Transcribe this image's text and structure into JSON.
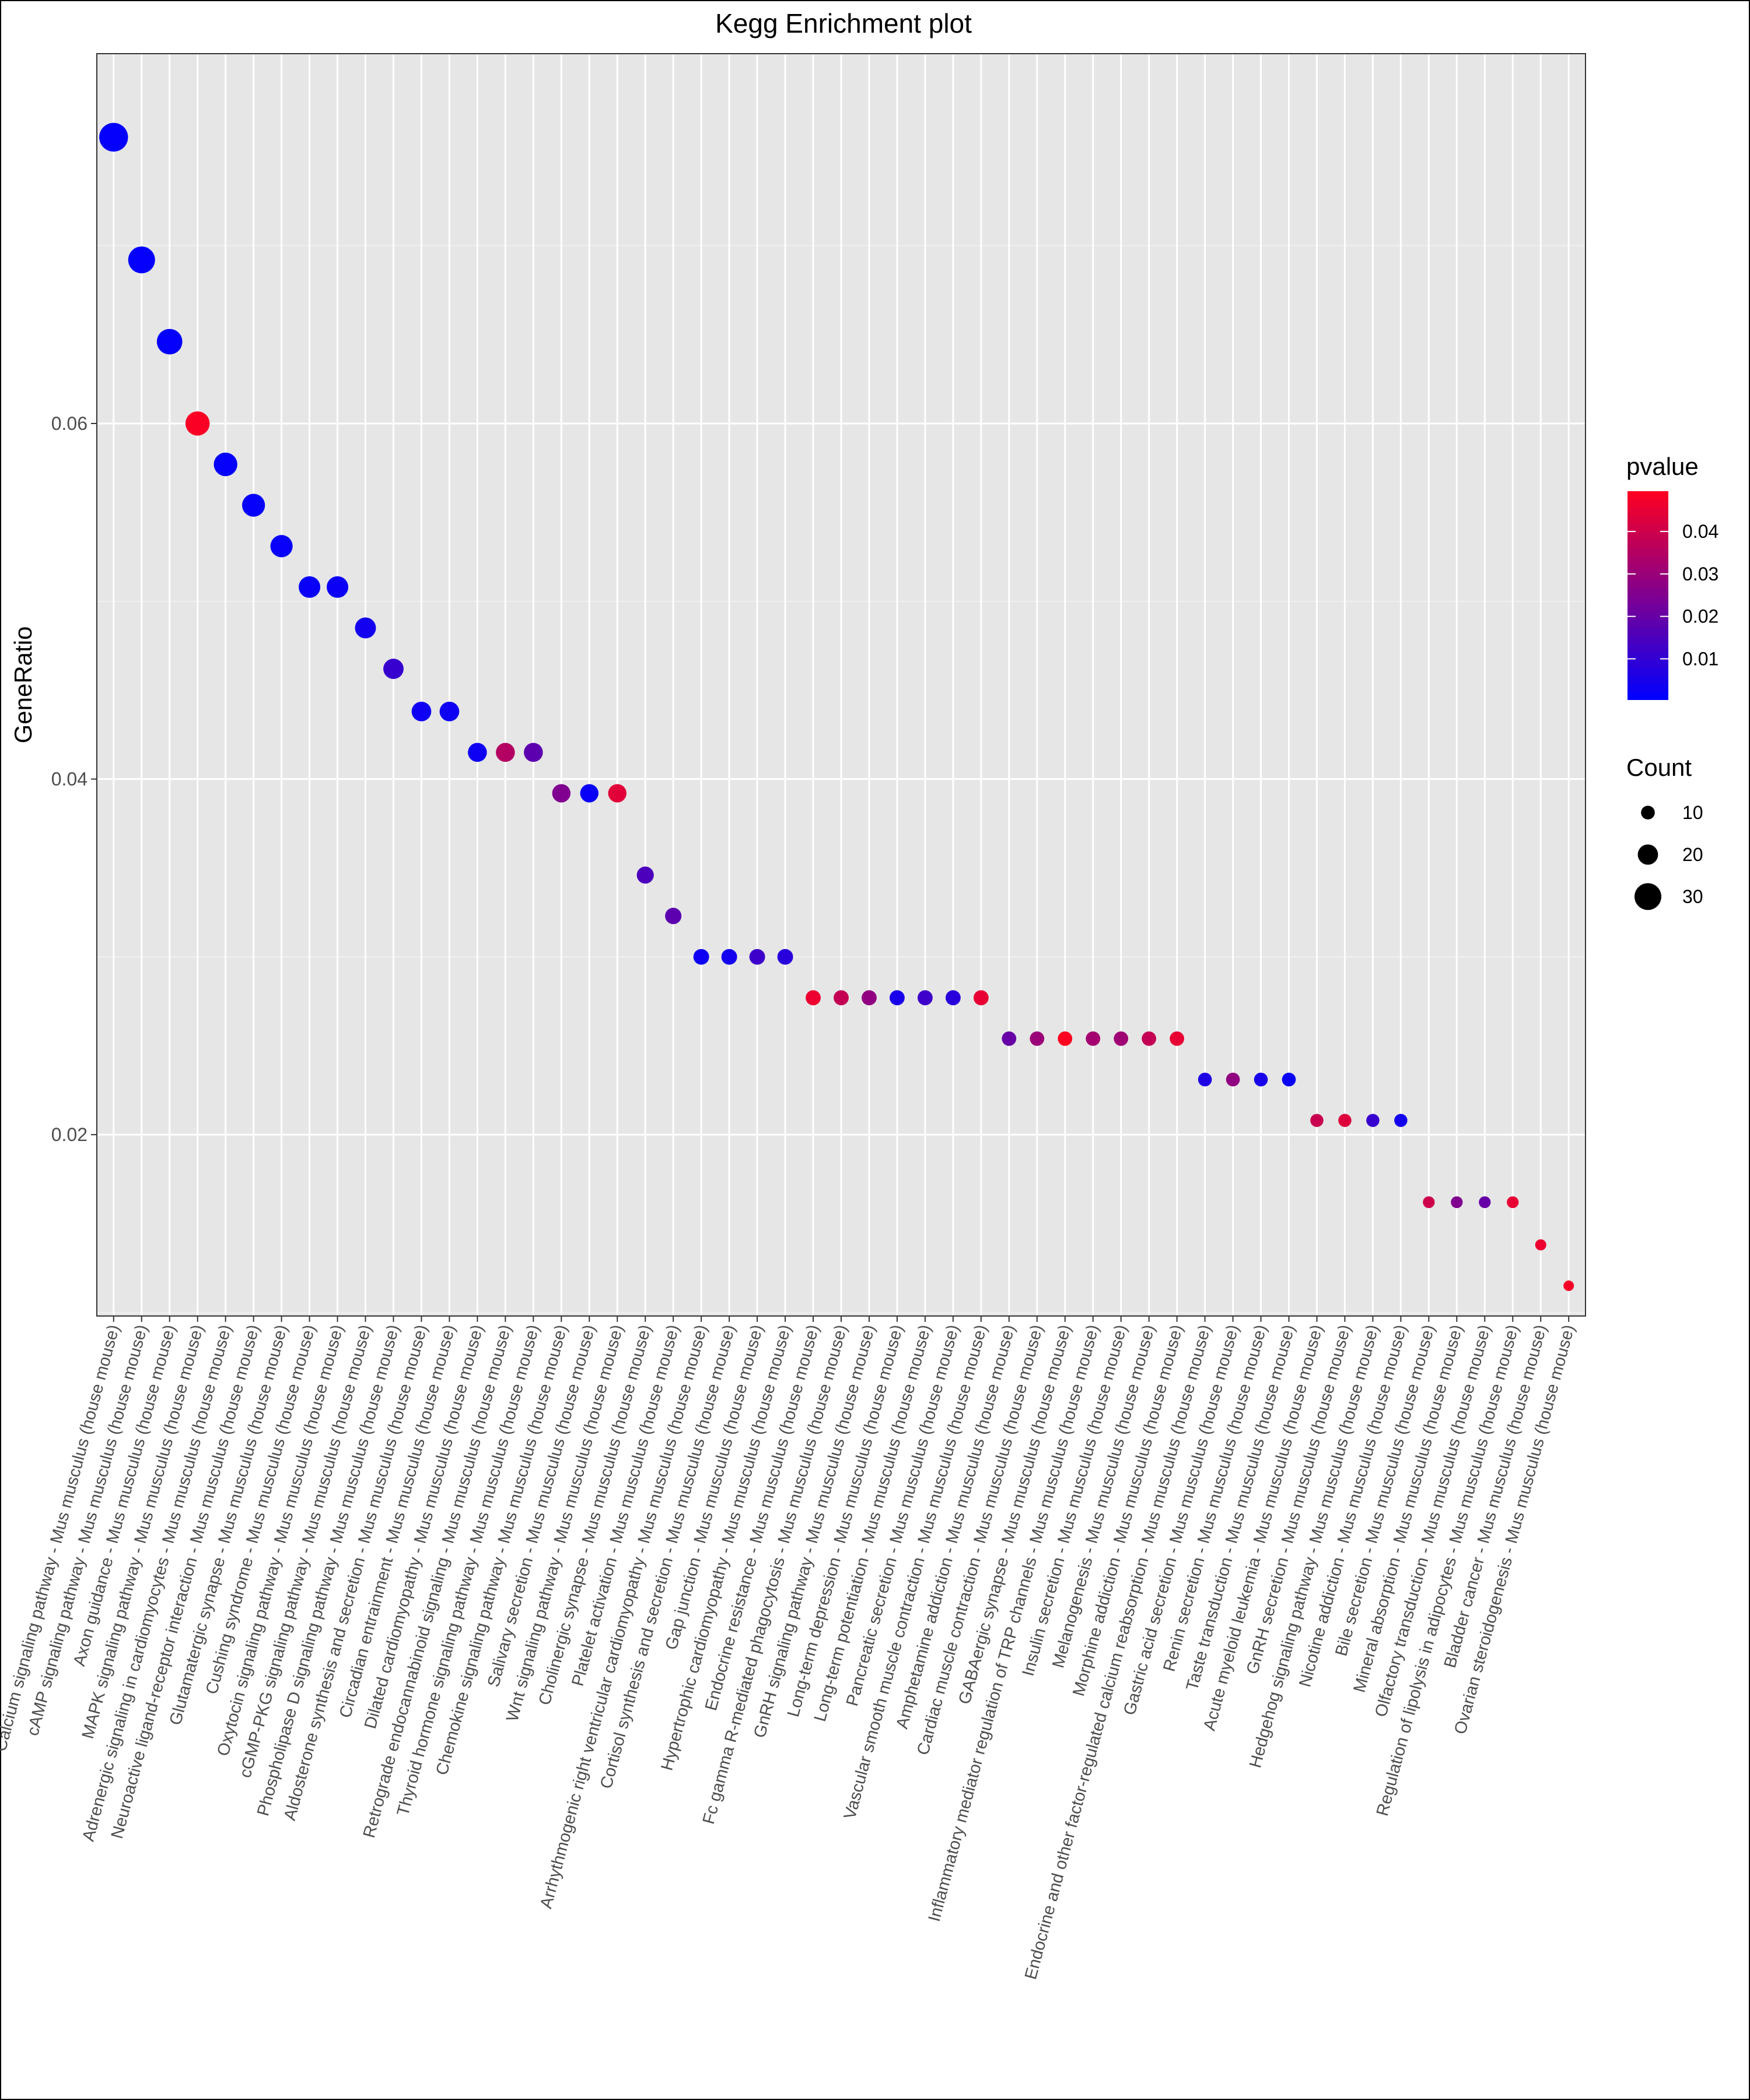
{
  "chart_data": {
    "type": "scatter",
    "title": "Kegg Enrichment plot",
    "xlabel": "",
    "ylabel": "GeneRatio",
    "ylim": [
      0.0098,
      0.0808
    ],
    "yticks": [
      0.02,
      0.04,
      0.06
    ],
    "ytick_labels": [
      "0.02",
      "0.04",
      "0.06"
    ],
    "grid": true,
    "legend_placement": "right",
    "color_legend": {
      "title": "pvalue",
      "ticks": [
        0.01,
        0.02,
        0.03,
        0.04
      ],
      "tick_labels": [
        "0.01",
        "0.02",
        "0.03",
        "0.04"
      ],
      "range": [
        0.0003,
        0.0495
      ],
      "low_color": "#0000ff",
      "high_color": "#ff0020"
    },
    "size_legend": {
      "title": "Count",
      "values": [
        10,
        20,
        30
      ],
      "labels": [
        "10",
        "20",
        "30"
      ]
    },
    "categories": [
      "Calcium signaling pathway - Mus musculus (house mouse)",
      "cAMP signaling pathway - Mus musculus (house mouse)",
      "Axon guidance - Mus musculus (house mouse)",
      "MAPK signaling pathway - Mus musculus (house mouse)",
      "Adrenergic signaling in cardiomyocytes - Mus musculus (house mouse)",
      "Neuroactive ligand-receptor interaction - Mus musculus (house mouse)",
      "Glutamatergic synapse - Mus musculus (house mouse)",
      "Cushing syndrome - Mus musculus (house mouse)",
      "Oxytocin signaling pathway - Mus musculus (house mouse)",
      "cGMP-PKG signaling pathway - Mus musculus (house mouse)",
      "Phospholipase D signaling pathway - Mus musculus (house mouse)",
      "Aldosterone synthesis and secretion - Mus musculus (house mouse)",
      "Circadian entrainment - Mus musculus (house mouse)",
      "Dilated cardiomyopathy - Mus musculus (house mouse)",
      "Retrograde endocannabinoid signaling - Mus musculus (house mouse)",
      "Thyroid hormone signaling pathway - Mus musculus (house mouse)",
      "Chemokine signaling pathway - Mus musculus (house mouse)",
      "Salivary secretion - Mus musculus (house mouse)",
      "Wnt signaling pathway - Mus musculus (house mouse)",
      "Cholinergic synapse - Mus musculus (house mouse)",
      "Platelet activation - Mus musculus (house mouse)",
      "Arrhythmogenic right ventricular cardiomyopathy - Mus musculus (house mouse)",
      "Cortisol synthesis and secretion - Mus musculus (house mouse)",
      "Gap junction - Mus musculus (house mouse)",
      "Hypertrophic cardiomyopathy - Mus musculus (house mouse)",
      "Endocrine resistance - Mus musculus (house mouse)",
      "Fc gamma R-mediated phagocytosis - Mus musculus (house mouse)",
      "GnRH signaling pathway - Mus musculus (house mouse)",
      "Long-term depression - Mus musculus (house mouse)",
      "Long-term potentiation - Mus musculus (house mouse)",
      "Pancreatic secretion - Mus musculus (house mouse)",
      "Vascular smooth muscle contraction - Mus musculus (house mouse)",
      "Amphetamine addiction - Mus musculus (house mouse)",
      "Cardiac muscle contraction - Mus musculus (house mouse)",
      "GABAergic synapse - Mus musculus (house mouse)",
      "Inflammatory mediator regulation of TRP channels - Mus musculus (house mouse)",
      "Insulin secretion - Mus musculus (house mouse)",
      "Melanogenesis - Mus musculus (house mouse)",
      "Morphine addiction - Mus musculus (house mouse)",
      "Endocrine and other factor-regulated calcium reabsorption - Mus musculus (house mouse)",
      "Gastric acid secretion - Mus musculus (house mouse)",
      "Renin secretion - Mus musculus (house mouse)",
      "Taste transduction - Mus musculus (house mouse)",
      "Acute myeloid leukemia - Mus musculus (house mouse)",
      "GnRH secretion - Mus musculus (house mouse)",
      "Hedgehog signaling pathway - Mus musculus (house mouse)",
      "Nicotine addiction - Mus musculus (house mouse)",
      "Bile secretion - Mus musculus (house mouse)",
      "Mineral absorption - Mus musculus (house mouse)",
      "Olfactory transduction - Mus musculus (house mouse)",
      "Regulation of lipolysis in adipocytes - Mus musculus (house mouse)",
      "Bladder cancer - Mus musculus (house mouse)",
      "Ovarian steroidogenesis - Mus musculus (house mouse)"
    ],
    "gene_ratio": [
      0.0761,
      0.0692,
      0.0646,
      0.06,
      0.0577,
      0.0554,
      0.0531,
      0.0508,
      0.0508,
      0.0485,
      0.0462,
      0.0438,
      0.0438,
      0.0415,
      0.0415,
      0.0415,
      0.0392,
      0.0392,
      0.0392,
      0.0346,
      0.0323,
      0.03,
      0.03,
      0.03,
      0.03,
      0.0277,
      0.0277,
      0.0277,
      0.0277,
      0.0277,
      0.0277,
      0.0277,
      0.0254,
      0.0254,
      0.0254,
      0.0254,
      0.0254,
      0.0254,
      0.0254,
      0.0231,
      0.0231,
      0.0231,
      0.0231,
      0.0208,
      0.0208,
      0.0208,
      0.0208,
      0.0162,
      0.0162,
      0.0162,
      0.0162,
      0.0138,
      0.0115
    ],
    "count": [
      33,
      30,
      28,
      26,
      25,
      24,
      23,
      22,
      22,
      21,
      20,
      19,
      19,
      18,
      18,
      18,
      17,
      17,
      17,
      15,
      14,
      13,
      13,
      13,
      13,
      12,
      12,
      12,
      12,
      12,
      12,
      12,
      11,
      11,
      11,
      11,
      11,
      11,
      11,
      10,
      10,
      10,
      10,
      9,
      9,
      9,
      9,
      7,
      7,
      7,
      7,
      6,
      5
    ],
    "pvalue": [
      0.001,
      0.001,
      0.0012,
      0.0485,
      0.0015,
      0.0015,
      0.0018,
      0.002,
      0.0025,
      0.004,
      0.011,
      0.003,
      0.003,
      0.003,
      0.035,
      0.018,
      0.025,
      0.002,
      0.044,
      0.015,
      0.018,
      0.003,
      0.004,
      0.012,
      0.008,
      0.046,
      0.038,
      0.028,
      0.005,
      0.012,
      0.008,
      0.045,
      0.02,
      0.03,
      0.0495,
      0.032,
      0.031,
      0.038,
      0.045,
      0.006,
      0.028,
      0.005,
      0.002,
      0.039,
      0.043,
      0.011,
      0.004,
      0.04,
      0.025,
      0.02,
      0.045,
      0.046,
      0.048
    ]
  }
}
